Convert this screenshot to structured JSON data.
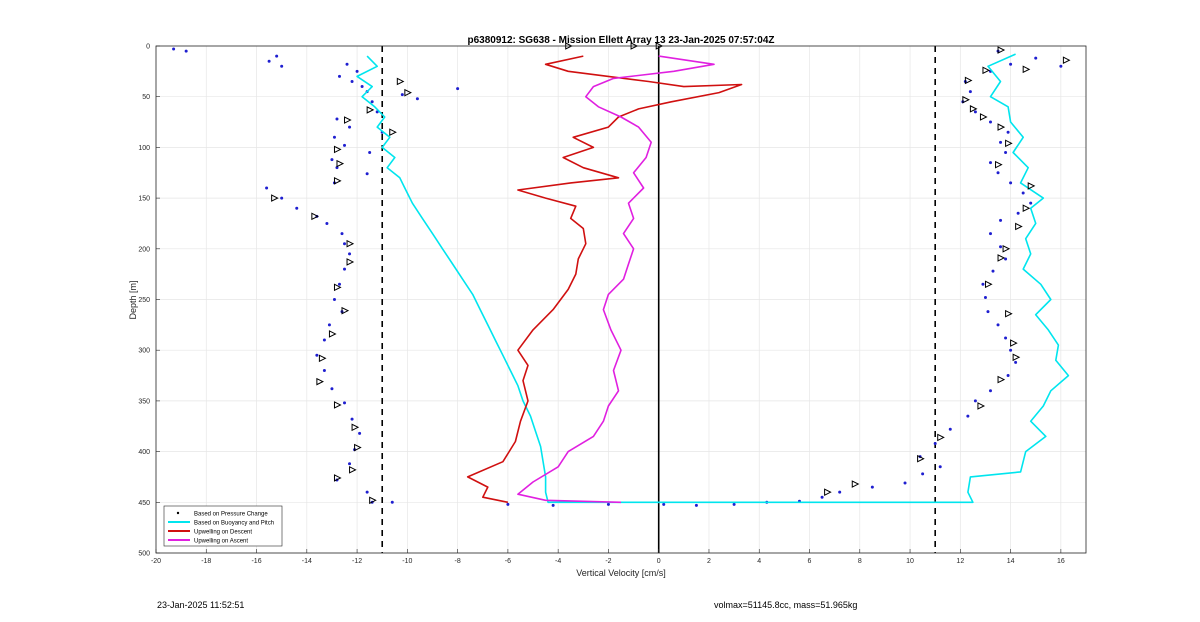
{
  "chart_data": {
    "type": "line",
    "title": "p6380912: SG638 - Mission Ellett Array 13 23-Jan-2025 07:57:04Z",
    "xlabel": "Vertical Velocity [cm/s]",
    "ylabel": "Depth [m]",
    "xlim": [
      -20,
      17
    ],
    "ylim": [
      0,
      500
    ],
    "y_reversed": true,
    "grid": true,
    "xticks": [
      -20,
      -18,
      -16,
      -14,
      -12,
      -10,
      -8,
      -6,
      -4,
      -2,
      0,
      2,
      4,
      6,
      8,
      10,
      12,
      14,
      16
    ],
    "yticks": [
      0,
      50,
      100,
      150,
      200,
      250,
      300,
      350,
      400,
      450,
      500
    ],
    "reference_lines": {
      "dashed_x": [
        -11,
        11
      ],
      "solid_x": [
        0
      ]
    },
    "legend_position": "bottom-left",
    "series": [
      {
        "name": "Based on Pressure Change",
        "style": "dots",
        "color": "#1f1fd0",
        "points_desc": [
          [
            -19.3,
            3
          ],
          [
            -18.8,
            5
          ],
          [
            -15.2,
            10
          ],
          [
            -15.5,
            15
          ],
          [
            -15.0,
            20
          ],
          [
            -12.4,
            18
          ],
          [
            -12.0,
            25
          ],
          [
            -12.7,
            30
          ],
          [
            -12.2,
            35
          ],
          [
            -11.8,
            40
          ],
          [
            -11.6,
            45
          ],
          [
            -10.2,
            48
          ],
          [
            -8.0,
            42
          ],
          [
            -9.6,
            52
          ],
          [
            -11.4,
            55
          ],
          [
            -11.2,
            65
          ],
          [
            -12.8,
            72
          ],
          [
            -12.3,
            80
          ],
          [
            -12.9,
            90
          ],
          [
            -11.0,
            85
          ],
          [
            -12.5,
            98
          ],
          [
            -11.5,
            105
          ],
          [
            -13.0,
            112
          ],
          [
            -12.8,
            120
          ],
          [
            -11.6,
            126
          ],
          [
            -12.9,
            135
          ],
          [
            -15.6,
            140
          ],
          [
            -15.0,
            150
          ],
          [
            -14.4,
            160
          ],
          [
            -13.6,
            168
          ],
          [
            -13.2,
            175
          ],
          [
            -12.6,
            185
          ],
          [
            -12.5,
            195
          ],
          [
            -12.3,
            205
          ],
          [
            -12.5,
            220
          ],
          [
            -12.7,
            235
          ],
          [
            -12.9,
            250
          ],
          [
            -12.6,
            262
          ],
          [
            -13.1,
            275
          ],
          [
            -13.3,
            290
          ],
          [
            -13.6,
            305
          ],
          [
            -13.3,
            320
          ],
          [
            -13.0,
            338
          ],
          [
            -12.5,
            352
          ],
          [
            -12.2,
            368
          ],
          [
            -11.9,
            382
          ],
          [
            -12.1,
            398
          ],
          [
            -12.3,
            412
          ],
          [
            -12.8,
            428
          ],
          [
            -11.6,
            440
          ],
          [
            -11.4,
            450
          ],
          [
            -10.6,
            450
          ]
        ],
        "points_asc": [
          [
            -6.0,
            452
          ],
          [
            -4.2,
            453
          ],
          [
            -2.0,
            452
          ],
          [
            0.2,
            452
          ],
          [
            1.5,
            453
          ],
          [
            3.0,
            452
          ],
          [
            4.3,
            450
          ],
          [
            5.6,
            449
          ],
          [
            6.5,
            445
          ],
          [
            7.2,
            440
          ],
          [
            8.5,
            435
          ],
          [
            9.8,
            431
          ],
          [
            10.5,
            422
          ],
          [
            11.2,
            415
          ],
          [
            10.4,
            405
          ],
          [
            11.0,
            392
          ],
          [
            11.6,
            378
          ],
          [
            12.3,
            365
          ],
          [
            12.6,
            350
          ],
          [
            13.2,
            340
          ],
          [
            13.9,
            325
          ],
          [
            14.2,
            312
          ],
          [
            14.0,
            300
          ],
          [
            13.8,
            288
          ],
          [
            13.5,
            275
          ],
          [
            13.1,
            262
          ],
          [
            13.0,
            248
          ],
          [
            12.9,
            235
          ],
          [
            13.3,
            222
          ],
          [
            13.8,
            210
          ],
          [
            13.6,
            198
          ],
          [
            13.2,
            185
          ],
          [
            13.6,
            172
          ],
          [
            14.3,
            165
          ],
          [
            14.8,
            155
          ],
          [
            14.5,
            145
          ],
          [
            14.0,
            135
          ],
          [
            13.5,
            125
          ],
          [
            13.2,
            115
          ],
          [
            13.8,
            105
          ],
          [
            13.6,
            95
          ],
          [
            13.9,
            85
          ],
          [
            13.2,
            75
          ],
          [
            12.6,
            65
          ],
          [
            12.1,
            55
          ],
          [
            12.4,
            45
          ],
          [
            12.2,
            35
          ],
          [
            13.2,
            25
          ],
          [
            14.0,
            18
          ],
          [
            15.0,
            12
          ],
          [
            16.0,
            20
          ],
          [
            13.5,
            5
          ]
        ]
      },
      {
        "name": "Based on Buoyancy and Pitch",
        "style": "line",
        "color": "#00e5ee",
        "points": [
          [
            -11.6,
            10
          ],
          [
            -11.2,
            20
          ],
          [
            -12.0,
            30
          ],
          [
            -11.4,
            40
          ],
          [
            -11.8,
            50
          ],
          [
            -11.3,
            60
          ],
          [
            -10.9,
            70
          ],
          [
            -11.2,
            80
          ],
          [
            -10.7,
            90
          ],
          [
            -11.0,
            100
          ],
          [
            -10.5,
            110
          ],
          [
            -10.8,
            120
          ],
          [
            -10.3,
            130
          ],
          [
            -10.1,
            140
          ],
          [
            -9.8,
            155
          ],
          [
            -9.4,
            170
          ],
          [
            -9.0,
            185
          ],
          [
            -8.6,
            200
          ],
          [
            -8.2,
            215
          ],
          [
            -7.8,
            230
          ],
          [
            -7.4,
            245
          ],
          [
            -7.1,
            260
          ],
          [
            -6.8,
            275
          ],
          [
            -6.5,
            290
          ],
          [
            -6.2,
            305
          ],
          [
            -5.9,
            320
          ],
          [
            -5.6,
            335
          ],
          [
            -5.4,
            350
          ],
          [
            -5.1,
            365
          ],
          [
            -4.9,
            380
          ],
          [
            -4.7,
            395
          ],
          [
            -4.6,
            410
          ],
          [
            -4.5,
            425
          ],
          [
            -4.5,
            440
          ],
          [
            -4.4,
            450
          ],
          [
            0,
            450
          ],
          [
            6,
            450
          ],
          [
            12.5,
            450
          ],
          [
            12.3,
            440
          ],
          [
            12.4,
            425
          ],
          [
            14.4,
            420
          ],
          [
            14.6,
            400
          ],
          [
            15.4,
            385
          ],
          [
            14.8,
            370
          ],
          [
            15.3,
            355
          ],
          [
            15.6,
            340
          ],
          [
            16.3,
            325
          ],
          [
            15.8,
            310
          ],
          [
            15.9,
            295
          ],
          [
            15.5,
            280
          ],
          [
            15.0,
            265
          ],
          [
            15.6,
            250
          ],
          [
            15.2,
            235
          ],
          [
            14.5,
            220
          ],
          [
            14.8,
            205
          ],
          [
            14.6,
            190
          ],
          [
            15.0,
            175
          ],
          [
            14.8,
            160
          ],
          [
            15.3,
            150
          ],
          [
            14.4,
            135
          ],
          [
            14.7,
            120
          ],
          [
            14.1,
            105
          ],
          [
            14.5,
            90
          ],
          [
            14.0,
            75
          ],
          [
            13.9,
            60
          ],
          [
            13.2,
            50
          ],
          [
            13.6,
            35
          ],
          [
            13.1,
            20
          ],
          [
            14.2,
            8
          ]
        ]
      },
      {
        "name": "Upwelling on Descent",
        "style": "line",
        "color": "#d01010",
        "points": [
          [
            -3.0,
            10
          ],
          [
            -4.5,
            18
          ],
          [
            -3.6,
            25
          ],
          [
            -2.0,
            30
          ],
          [
            -0.4,
            35
          ],
          [
            1.0,
            40
          ],
          [
            3.3,
            38
          ],
          [
            2.4,
            46
          ],
          [
            0.5,
            55
          ],
          [
            -0.8,
            62
          ],
          [
            -1.6,
            70
          ],
          [
            -2.0,
            80
          ],
          [
            -3.4,
            90
          ],
          [
            -2.6,
            100
          ],
          [
            -3.8,
            110
          ],
          [
            -3.0,
            120
          ],
          [
            -1.6,
            130
          ],
          [
            -3.5,
            135
          ],
          [
            -5.6,
            142
          ],
          [
            -4.5,
            150
          ],
          [
            -3.3,
            158
          ],
          [
            -3.5,
            170
          ],
          [
            -3.0,
            180
          ],
          [
            -2.9,
            195
          ],
          [
            -3.2,
            210
          ],
          [
            -3.3,
            225
          ],
          [
            -3.6,
            240
          ],
          [
            -4.2,
            260
          ],
          [
            -5.0,
            280
          ],
          [
            -5.6,
            300
          ],
          [
            -5.2,
            315
          ],
          [
            -5.4,
            330
          ],
          [
            -5.2,
            350
          ],
          [
            -5.5,
            370
          ],
          [
            -5.7,
            390
          ],
          [
            -6.2,
            410
          ],
          [
            -7.6,
            425
          ],
          [
            -6.8,
            435
          ],
          [
            -7.0,
            445
          ],
          [
            -6.0,
            450
          ]
        ]
      },
      {
        "name": "Upwelling on Ascent",
        "style": "line",
        "color": "#e020e0",
        "points": [
          [
            -1.5,
            450
          ],
          [
            -4.5,
            448
          ],
          [
            -5.6,
            442
          ],
          [
            -5.0,
            430
          ],
          [
            -4.0,
            415
          ],
          [
            -3.6,
            400
          ],
          [
            -2.6,
            385
          ],
          [
            -2.2,
            370
          ],
          [
            -2.0,
            355
          ],
          [
            -1.6,
            340
          ],
          [
            -1.8,
            320
          ],
          [
            -1.5,
            300
          ],
          [
            -1.9,
            280
          ],
          [
            -2.2,
            260
          ],
          [
            -2.0,
            245
          ],
          [
            -1.4,
            230
          ],
          [
            -1.2,
            215
          ],
          [
            -1.0,
            200
          ],
          [
            -1.4,
            185
          ],
          [
            -1.0,
            170
          ],
          [
            -1.2,
            155
          ],
          [
            -0.6,
            140
          ],
          [
            -1.0,
            125
          ],
          [
            -0.5,
            110
          ],
          [
            -0.3,
            95
          ],
          [
            -0.8,
            80
          ],
          [
            -1.5,
            70
          ],
          [
            -2.4,
            60
          ],
          [
            -2.9,
            50
          ],
          [
            -2.6,
            40
          ],
          [
            -1.8,
            32
          ],
          [
            0.6,
            25
          ],
          [
            2.2,
            18
          ],
          [
            0.0,
            10
          ]
        ]
      }
    ],
    "triangle_markers": [
      [
        -3.6,
        0
      ],
      [
        -1.0,
        0
      ],
      [
        0.0,
        0
      ],
      [
        -10.3,
        35
      ],
      [
        -10.0,
        46
      ],
      [
        -11.5,
        63
      ],
      [
        -12.4,
        73
      ],
      [
        -10.6,
        85
      ],
      [
        -12.8,
        102
      ],
      [
        -12.7,
        116
      ],
      [
        -12.8,
        133
      ],
      [
        -15.3,
        150
      ],
      [
        -13.7,
        168
      ],
      [
        -12.3,
        195
      ],
      [
        -12.3,
        213
      ],
      [
        -12.8,
        238
      ],
      [
        -12.5,
        261
      ],
      [
        -13.0,
        284
      ],
      [
        -13.4,
        308
      ],
      [
        -13.5,
        331
      ],
      [
        -12.8,
        354
      ],
      [
        -12.1,
        376
      ],
      [
        -12.0,
        396
      ],
      [
        -12.2,
        418
      ],
      [
        -12.8,
        426
      ],
      [
        -11.4,
        448
      ],
      [
        6.7,
        440
      ],
      [
        7.8,
        432
      ],
      [
        10.4,
        407
      ],
      [
        11.2,
        386
      ],
      [
        12.8,
        355
      ],
      [
        13.6,
        329
      ],
      [
        14.2,
        307
      ],
      [
        14.1,
        293
      ],
      [
        13.9,
        264
      ],
      [
        13.1,
        235
      ],
      [
        13.6,
        209
      ],
      [
        13.8,
        200
      ],
      [
        14.3,
        178
      ],
      [
        14.6,
        160
      ],
      [
        14.8,
        138
      ],
      [
        13.5,
        117
      ],
      [
        13.9,
        96
      ],
      [
        13.6,
        80
      ],
      [
        12.9,
        70
      ],
      [
        12.5,
        62
      ],
      [
        12.2,
        53
      ],
      [
        12.3,
        34
      ],
      [
        13.0,
        24
      ],
      [
        14.6,
        23
      ],
      [
        16.2,
        14
      ],
      [
        13.6,
        4
      ]
    ],
    "legend": [
      {
        "label": "Based on Pressure Change",
        "style": "dot",
        "color": "#000000"
      },
      {
        "label": "Based on Buoyancy and Pitch",
        "style": "line",
        "color": "#00e5ee"
      },
      {
        "label": "Upwelling on Descent",
        "style": "line",
        "color": "#d01010"
      },
      {
        "label": "Upwelling on Ascent",
        "style": "line",
        "color": "#e020e0"
      }
    ]
  },
  "footer": {
    "timestamp": "23-Jan-2025 11:52:51",
    "info": "volmax=51145.8cc, mass=51.965kg"
  }
}
